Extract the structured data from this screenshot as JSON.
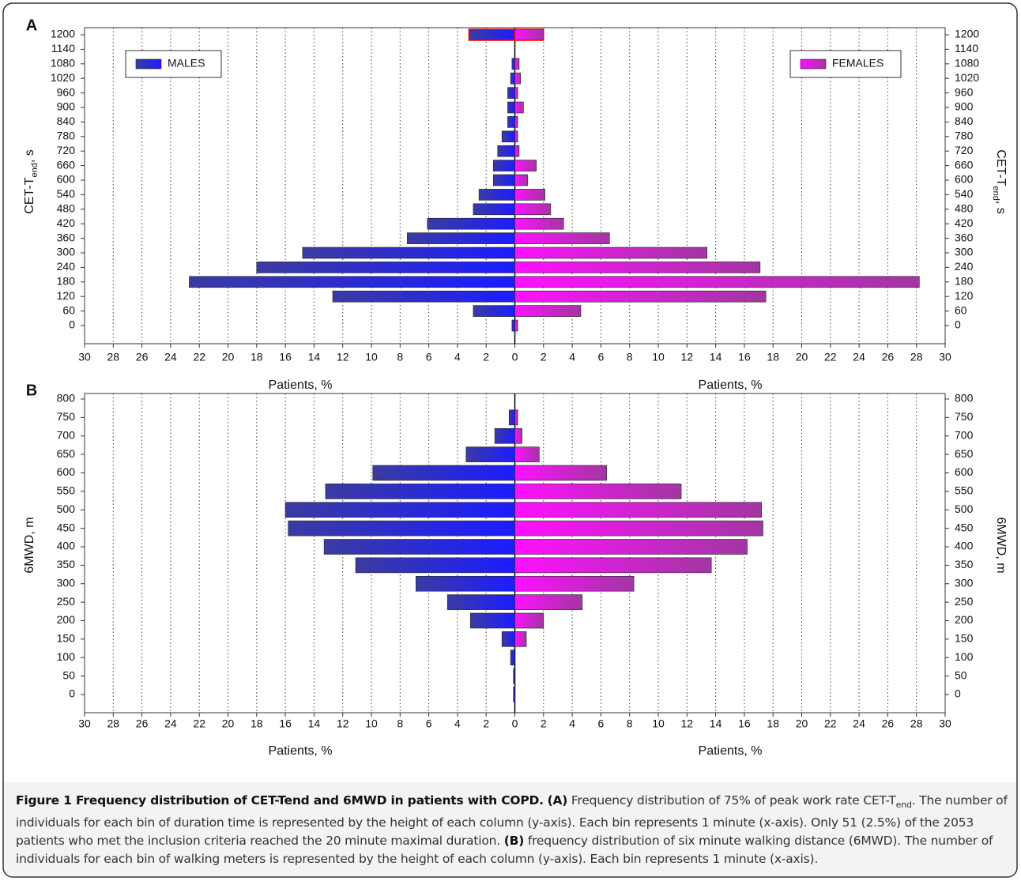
{
  "chart_data": [
    {
      "type": "pyramid",
      "panel": "A",
      "ylabel": [
        "CET-T",
        "end",
        ", s"
      ],
      "y2label": [
        "CET-T",
        "end",
        ", s"
      ],
      "xlabel_left": "Patients, %",
      "xlabel_right": "Patients, %",
      "categories": [
        "0",
        "60",
        "120",
        "180",
        "240",
        "300",
        "360",
        "420",
        "480",
        "540",
        "600",
        "660",
        "720",
        "780",
        "840",
        "900",
        "960",
        "1020",
        "1080",
        "1140",
        "1200"
      ],
      "series": [
        {
          "name": "MALES",
          "color": "#1c1cff",
          "values": [
            -0.2,
            -2.9,
            -12.7,
            -22.7,
            -18.0,
            -14.8,
            -7.5,
            -6.1,
            -2.9,
            -2.5,
            -1.5,
            -1.5,
            -1.2,
            -0.9,
            -0.5,
            -0.5,
            -0.5,
            -0.3,
            -0.2,
            0,
            -3.2
          ]
        },
        {
          "name": "FEMALES",
          "color": "#ff10ff",
          "values": [
            0.2,
            4.6,
            17.5,
            28.2,
            17.1,
            13.4,
            6.6,
            3.4,
            2.5,
            2.1,
            0.9,
            1.5,
            0.3,
            0.2,
            0.2,
            0.6,
            0.2,
            0.4,
            0.3,
            0,
            2.0
          ]
        }
      ],
      "highlight": {
        "category_index": 20,
        "color": "#ff0000"
      },
      "legend": "top corners",
      "xlim": [
        -30,
        30
      ],
      "xticks": [
        {
          "value": -30,
          "label": "30"
        },
        {
          "value": -28,
          "label": "28"
        },
        {
          "value": -26,
          "label": "26"
        },
        {
          "value": -24,
          "label": "24"
        },
        {
          "value": -22,
          "label": "22"
        },
        {
          "value": -20,
          "label": "20"
        },
        {
          "value": -18,
          "label": "18"
        },
        {
          "value": -16,
          "label": "16"
        },
        {
          "value": -14,
          "label": "14"
        },
        {
          "value": -12,
          "label": "12"
        },
        {
          "value": -10,
          "label": "10"
        },
        {
          "value": -8,
          "label": "8"
        },
        {
          "value": -6,
          "label": "6"
        },
        {
          "value": -4,
          "label": "4"
        },
        {
          "value": -2,
          "label": "2"
        },
        0,
        2,
        4,
        6,
        8,
        10,
        12,
        14,
        16,
        18,
        20,
        22,
        24,
        26,
        28,
        30
      ],
      "grid": true
    },
    {
      "type": "pyramid",
      "panel": "B",
      "ylabel": "6MWD, m",
      "y2label": "6MWD, m",
      "xlabel_left": "Patients, %",
      "xlabel_right": "Patients, %",
      "categories": [
        "0",
        "50",
        "100",
        "150",
        "200",
        "250",
        "300",
        "350",
        "400",
        "450",
        "500",
        "550",
        "600",
        "650",
        "700",
        "750",
        "800"
      ],
      "series": [
        {
          "color": "#1c1cff",
          "values": [
            -0.1,
            -0.1,
            -0.3,
            -0.9,
            -3.1,
            -4.7,
            -6.9,
            -11.1,
            -13.3,
            -15.8,
            -16.0,
            -13.2,
            -9.9,
            -3.4,
            -1.4,
            -0.4,
            0
          ]
        },
        {
          "color": "#ff10ff",
          "values": [
            0,
            0,
            0,
            0.8,
            2.0,
            4.7,
            8.3,
            13.7,
            16.2,
            17.3,
            17.2,
            11.6,
            6.4,
            1.7,
            0.5,
            0.2,
            0
          ]
        }
      ],
      "legend": "none",
      "xlim": [
        -30,
        30
      ],
      "xticks": [
        {
          "value": -30,
          "label": "30"
        },
        {
          "value": -28,
          "label": "28"
        },
        {
          "value": -26,
          "label": "26"
        },
        {
          "value": -24,
          "label": "24"
        },
        {
          "value": -22,
          "label": "22"
        },
        {
          "value": -20,
          "label": "20"
        },
        {
          "value": -18,
          "label": "18"
        },
        {
          "value": -16,
          "label": "16"
        },
        {
          "value": -14,
          "label": "14"
        },
        {
          "value": -12,
          "label": "12"
        },
        {
          "value": -10,
          "label": "10"
        },
        {
          "value": -8,
          "label": "8"
        },
        {
          "value": -6,
          "label": "6"
        },
        {
          "value": -4,
          "label": "4"
        },
        {
          "value": -2,
          "label": "2"
        },
        0,
        2,
        4,
        6,
        8,
        10,
        12,
        14,
        16,
        18,
        20,
        22,
        24,
        26,
        28,
        30
      ],
      "grid": true
    }
  ],
  "caption": {
    "title": "Figure 1 Frequency distribution of CET-Tend and 6MWD in patients with COPD.",
    "label_a": "(A)",
    "text_a1": "Frequency distribution of 75% of peak work rate CET-T",
    "text_a_sub": "end",
    "text_a2": ". The number of individuals for each bin of duration time is represented by the height of each column (y-axis). Each bin represents 1 minute (x-axis). Only 51 (2.5%) of the 2053 patients who met the inclusion criteria reached the 20 minute maximal duration.",
    "label_b": "(B)",
    "text_b": "frequency distribution of six minute walking distance (6MWD). The number of individuals for each bin of walking meters is represented by the height of each column (y-axis). Each bin represents 1 minute (x-axis)."
  }
}
